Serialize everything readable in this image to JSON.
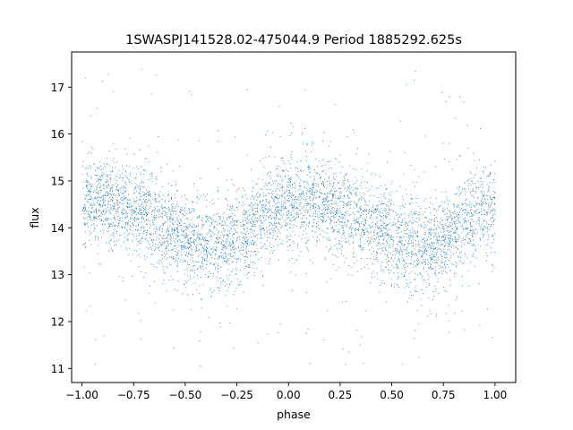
{
  "chart_data": {
    "type": "scatter",
    "title": "1SWASPJ141528.02-475044.9 Period 1885292.625s",
    "xlabel": "phase",
    "ylabel": "flux",
    "xlim": [
      -1.05,
      1.1
    ],
    "ylim": [
      10.7,
      17.75
    ],
    "x_ticks": [
      -1.0,
      -0.75,
      -0.5,
      -0.25,
      0.0,
      0.25,
      0.5,
      0.75,
      1.0
    ],
    "x_tick_labels": [
      "−1.00",
      "−0.75",
      "−0.50",
      "−0.25",
      "0.00",
      "0.25",
      "0.50",
      "0.75",
      "1.00"
    ],
    "y_ticks": [
      11,
      12,
      13,
      14,
      15,
      16,
      17
    ],
    "y_tick_labels": [
      "11",
      "12",
      "13",
      "14",
      "15",
      "16",
      "17"
    ],
    "grid": false,
    "legend": "none",
    "marker_color": "#1f77b4",
    "series": [
      {
        "phase": [
          -1.0,
          -0.9,
          -0.8,
          -0.7,
          -0.6,
          -0.5,
          -0.4,
          -0.3,
          -0.2,
          -0.1,
          0.0,
          0.1,
          0.2,
          0.3,
          0.4,
          0.5,
          0.6,
          0.7,
          0.8,
          0.9,
          1.0
        ],
        "median_flux": [
          14.5,
          14.6,
          14.45,
          14.3,
          14.05,
          13.8,
          13.6,
          13.65,
          13.95,
          14.35,
          14.55,
          14.6,
          14.45,
          14.3,
          14.05,
          13.8,
          13.6,
          13.65,
          13.95,
          14.35,
          14.55
        ],
        "scatter": 0.5,
        "outlier_range": [
          11.0,
          17.4
        ]
      }
    ]
  }
}
